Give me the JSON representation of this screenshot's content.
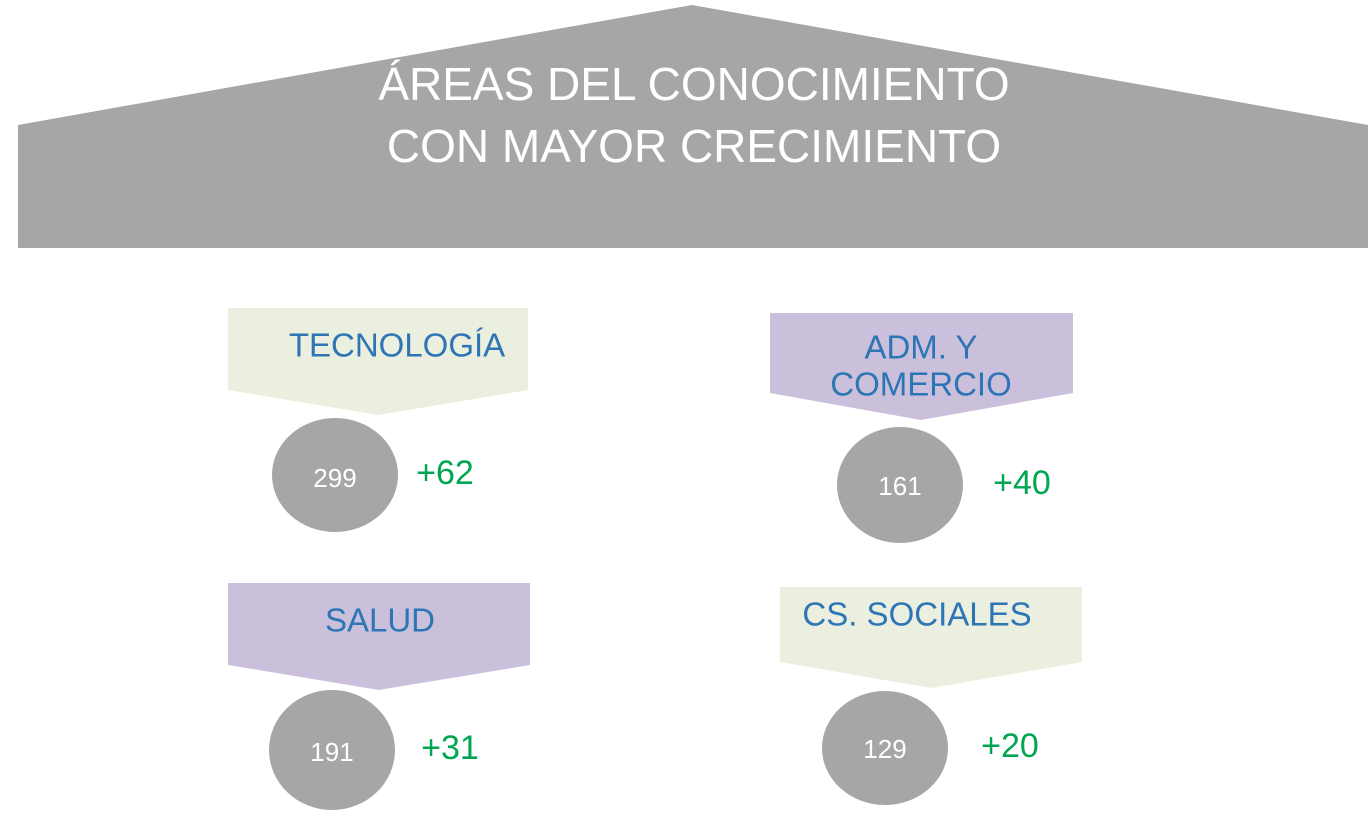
{
  "header": {
    "title_lines": [
      "ÁREAS DEL CONOCIMIENTO",
      "CON MAYOR CRECIMIENTO"
    ]
  },
  "cards": [
    {
      "label_lines": [
        "TECNOLOGÍA"
      ],
      "count": "299",
      "growth": "+62"
    },
    {
      "label_lines": [
        "ADM. Y",
        "COMERCIO"
      ],
      "count": "161",
      "growth": "+40"
    },
    {
      "label_lines": [
        "SALUD"
      ],
      "count": "191",
      "growth": "+31"
    },
    {
      "label_lines": [
        "CS. SOCIALES"
      ],
      "count": "129",
      "growth": "+20"
    }
  ]
}
